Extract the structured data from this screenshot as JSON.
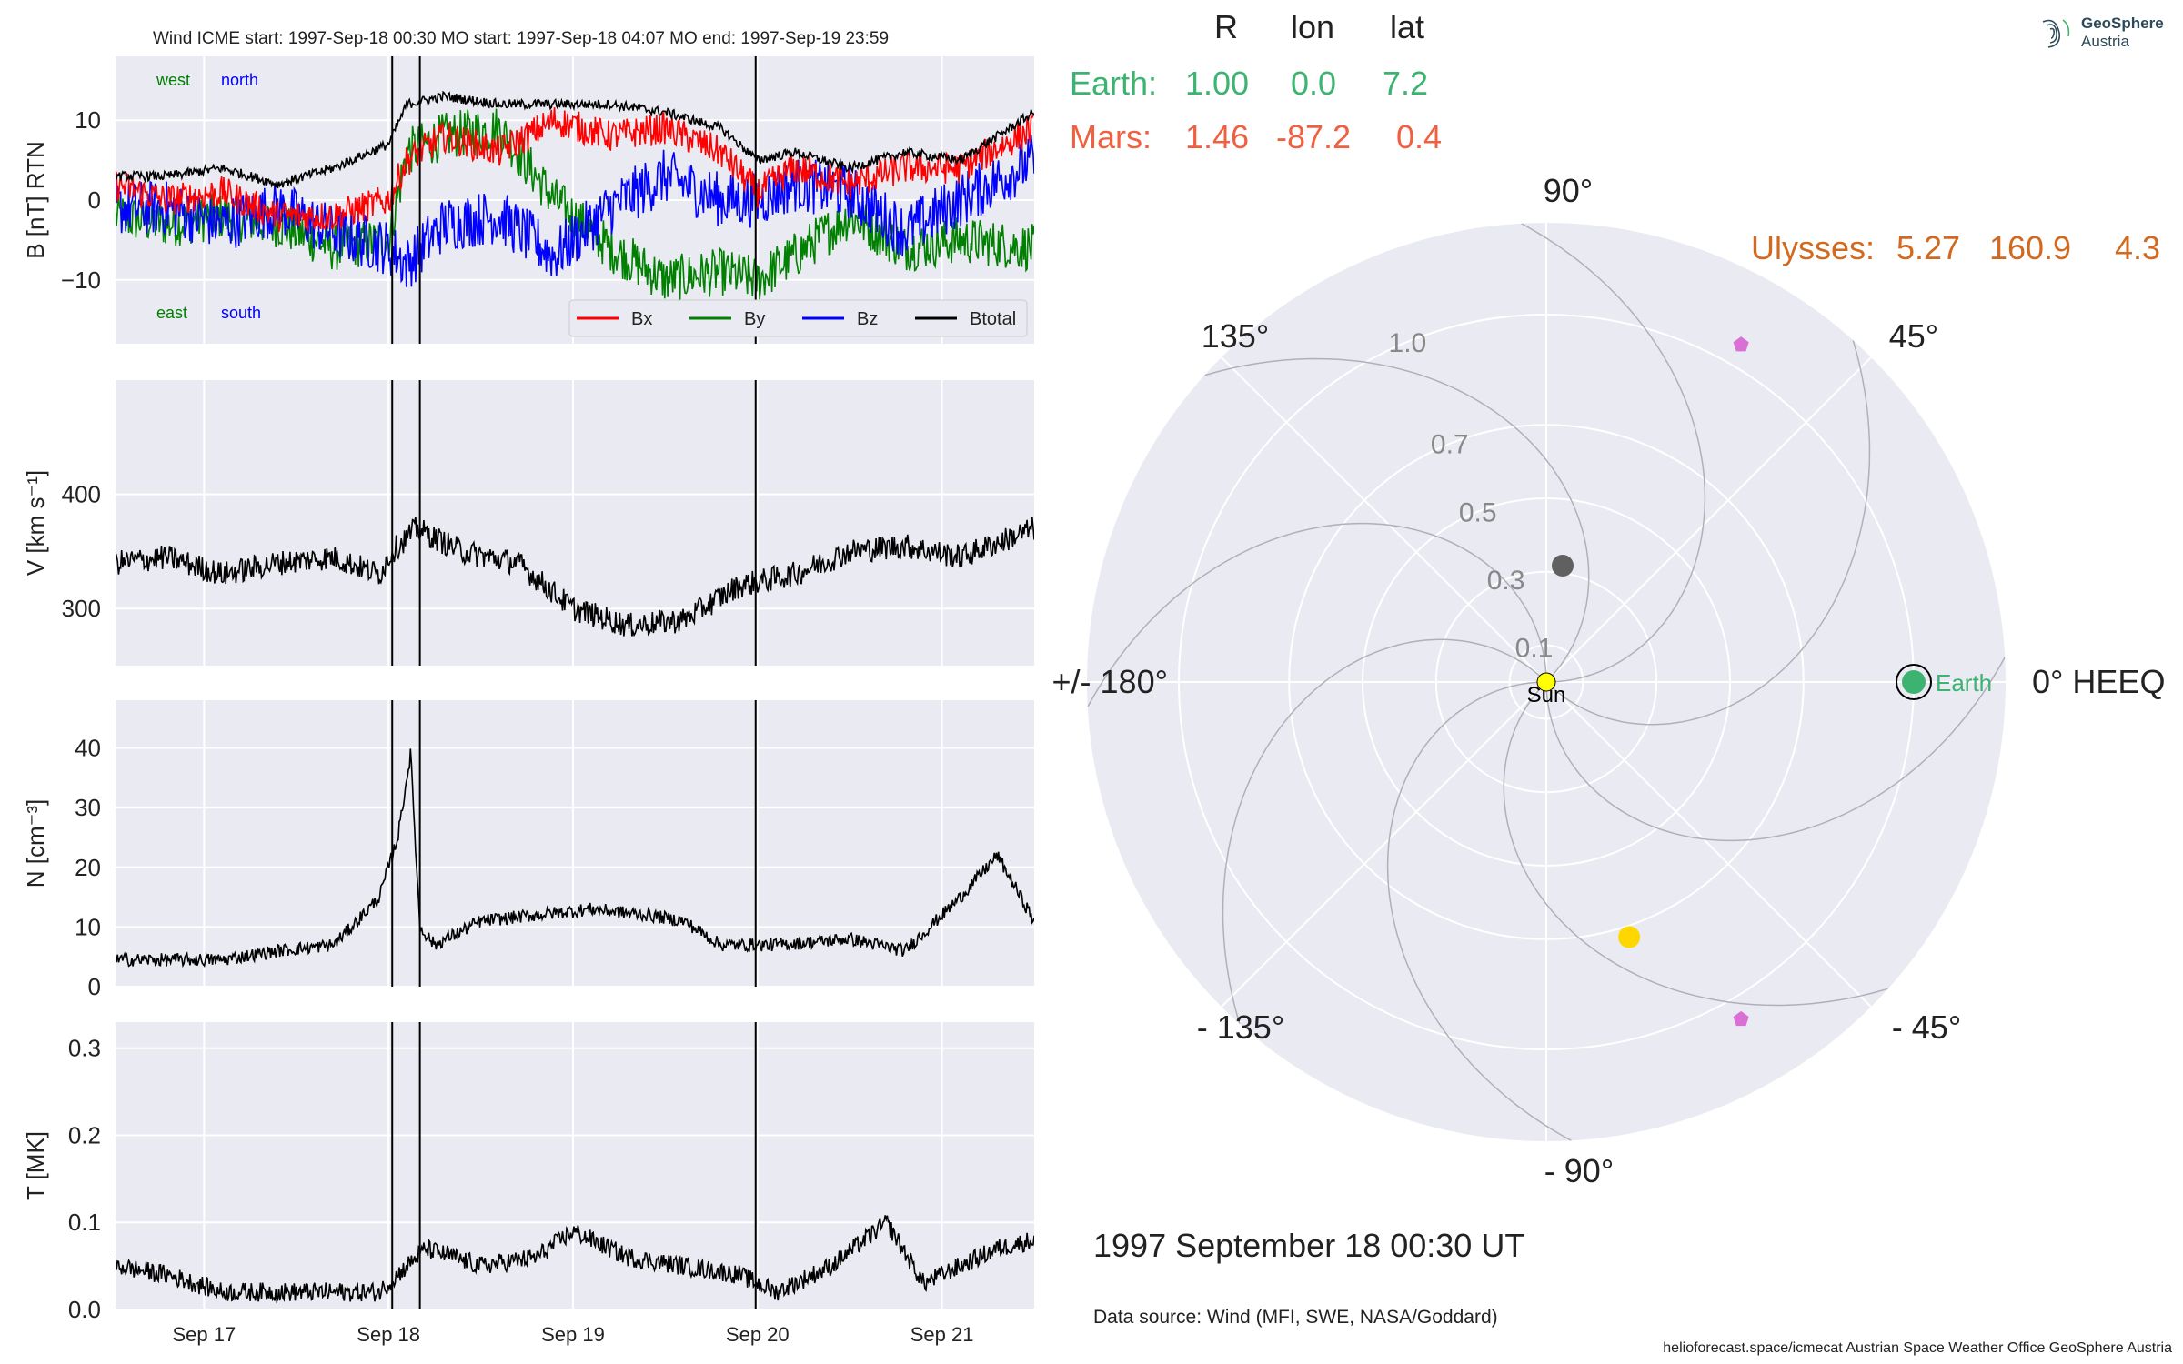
{
  "header": {
    "title": "Wind    ICME start: 1997-Sep-18 00:30   MO start: 1997-Sep-18 04:07   MO end: 1997-Sep-19 23:59"
  },
  "logo": {
    "line1": "GeoSphere",
    "line2": "Austria",
    "icon": "geosphere-spiral-icon"
  },
  "colors": {
    "bx": "#ff0000",
    "by": "#008000",
    "bz": "#0000ff",
    "btotal": "#000000",
    "earth": "#3cb371",
    "mars": "#f06040",
    "ulysses": "#d2691e",
    "panel_bg": "#eaeaf2",
    "grid": "#ffffff"
  },
  "positions_table": {
    "headers": [
      "R",
      "lon",
      "lat"
    ],
    "rows": [
      {
        "name": "Earth:",
        "values": [
          "1.00",
          "0.0",
          "7.2"
        ],
        "color": "#3cb371"
      },
      {
        "name": "Mars:",
        "values": [
          "1.46",
          "-87.2",
          "0.4"
        ],
        "color": "#f06040"
      }
    ],
    "ulysses": {
      "name": "Ulysses:",
      "values": [
        "5.27",
        "160.9",
        "4.3"
      ]
    }
  },
  "insitu": {
    "x_ticks": [
      "Sep 17",
      "Sep 18",
      "Sep 19",
      "Sep 20",
      "Sep 21"
    ],
    "x_tick_days": [
      17,
      18,
      19,
      20,
      21
    ],
    "x_range_days": [
      16.52,
      21.5
    ],
    "event_lines_days": [
      18.02,
      18.17,
      19.99
    ],
    "mag": {
      "ylabel": "B [nT] RTN",
      "ylim": [
        -18,
        18
      ],
      "yticks": [
        "10",
        "0",
        "−10"
      ],
      "ytick_values": [
        10,
        0,
        -10
      ],
      "annot_west": "west",
      "annot_north": "north",
      "annot_east": "east",
      "annot_south": "south",
      "legend": [
        "Bx",
        "By",
        "Bz",
        "Btotal"
      ],
      "series_x_days": [
        16.52,
        16.8,
        17.1,
        17.4,
        17.7,
        18.0,
        18.1,
        18.3,
        18.6,
        18.9,
        19.2,
        19.5,
        19.8,
        20.0,
        20.2,
        20.5,
        20.8,
        21.1,
        21.5
      ],
      "btotal": [
        3,
        3,
        4,
        2,
        4,
        7,
        12,
        13,
        12,
        12,
        12,
        11,
        9,
        5,
        6,
        4,
        6,
        5,
        11
      ],
      "bx": [
        2,
        0,
        1,
        -2,
        -2,
        0,
        5,
        8,
        6,
        10,
        8,
        9,
        6,
        1,
        4,
        2,
        4,
        4,
        9
      ],
      "by": [
        -2,
        -3,
        -2,
        -3,
        -6,
        -5,
        6,
        8,
        9,
        0,
        -6,
        -10,
        -9,
        -10,
        -7,
        -2,
        -6,
        -5,
        -6
      ],
      "bz": [
        -1,
        -1,
        -3,
        -1,
        -4,
        -6,
        -8,
        -3,
        -2,
        -7,
        -1,
        3,
        0,
        0,
        2,
        1,
        -4,
        0,
        5
      ]
    },
    "speed": {
      "ylabel": "V [km s⁻¹]",
      "ylim": [
        250,
        500
      ],
      "yticks": [
        "400",
        "300"
      ],
      "ytick_values": [
        400,
        300
      ],
      "series_x_days": [
        16.52,
        16.8,
        17.1,
        17.4,
        17.7,
        17.95,
        18.02,
        18.15,
        18.4,
        18.7,
        19.0,
        19.3,
        19.6,
        19.9,
        20.2,
        20.5,
        20.8,
        21.1,
        21.5
      ],
      "values": [
        340,
        345,
        330,
        340,
        345,
        330,
        350,
        370,
        350,
        340,
        300,
        285,
        290,
        320,
        330,
        350,
        355,
        345,
        370
      ]
    },
    "density": {
      "ylabel": "N [cm⁻³]",
      "ylim": [
        0,
        48
      ],
      "yticks": [
        "40",
        "30",
        "20",
        "10",
        "0"
      ],
      "ytick_values": [
        40,
        30,
        20,
        10,
        0
      ],
      "series_x_days": [
        16.52,
        16.8,
        17.1,
        17.4,
        17.7,
        17.8,
        17.95,
        18.05,
        18.12,
        18.17,
        18.25,
        18.5,
        18.8,
        19.1,
        19.4,
        19.6,
        19.8,
        20.1,
        20.5,
        20.8,
        21.1,
        21.3,
        21.5
      ],
      "values": [
        4.5,
        4.5,
        4.5,
        6,
        7,
        10,
        15,
        25,
        39,
        10,
        7,
        11,
        12,
        13,
        12,
        11,
        7,
        7,
        8,
        6,
        15,
        22,
        11
      ]
    },
    "temperature": {
      "ylabel": "T [MK]",
      "ylim": [
        0,
        0.33
      ],
      "yticks": [
        "0.3",
        "0.2",
        "0.1",
        "0.0"
      ],
      "ytick_values": [
        0.3,
        0.2,
        0.1,
        0.0
      ],
      "series_x_days": [
        16.52,
        16.8,
        17.1,
        17.4,
        17.7,
        17.95,
        18.1,
        18.2,
        18.5,
        18.8,
        19.0,
        19.3,
        19.6,
        19.9,
        20.1,
        20.4,
        20.7,
        20.9,
        21.1,
        21.3,
        21.5
      ],
      "values": [
        0.05,
        0.04,
        0.02,
        0.02,
        0.02,
        0.02,
        0.05,
        0.07,
        0.05,
        0.06,
        0.09,
        0.06,
        0.05,
        0.04,
        0.02,
        0.05,
        0.1,
        0.03,
        0.05,
        0.07,
        0.08
      ]
    }
  },
  "polar": {
    "angle_labels": {
      "a90": "90°",
      "a45": "45°",
      "a0": "0° HEEQ",
      "am45": "- 45°",
      "am90": "- 90°",
      "am135": "- 135°",
      "a180": "+/- 180°",
      "a135": "135°"
    },
    "radial_ticks": [
      "0.1",
      "0.3",
      "0.5",
      "0.7",
      "1.0"
    ],
    "radial_tick_values": [
      0.1,
      0.3,
      0.5,
      0.7,
      1.0
    ],
    "r_max": 1.25,
    "sun_label": "Sun",
    "earth_label": "Earth",
    "bodies": [
      {
        "name": "earth",
        "r": 1.0,
        "lon_deg": 0.0,
        "color": "#3cb371"
      },
      {
        "name": "grey-body",
        "r": 0.32,
        "lon_deg": 82,
        "color": "#606060"
      },
      {
        "name": "yellow-body",
        "r": 0.73,
        "lon_deg": -72,
        "color": "#ffd700"
      },
      {
        "name": "violet-upper",
        "r": 1.06,
        "lon_deg": 60,
        "color": "#da70d6"
      },
      {
        "name": "violet-lower",
        "r": 1.06,
        "lon_deg": -60,
        "color": "#da70d6"
      }
    ]
  },
  "timestamp": "1997 September 18  00:30 UT",
  "data_source": "Data source: Wind (MFI, SWE, NASA/Goddard)",
  "footer": "helioforecast.space/icmecat   Austrian Space Weather Office   GeoSphere Austria"
}
